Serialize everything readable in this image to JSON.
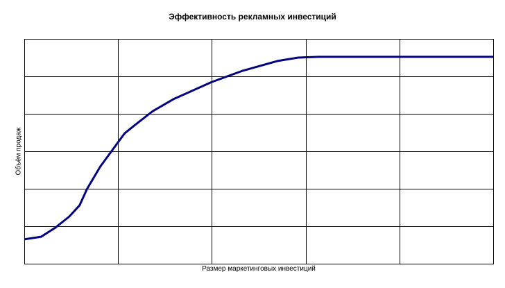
{
  "chart_data": {
    "type": "line",
    "title": "Эффективность рекламных инвестиций",
    "xlabel": "Размер маркетинговых инвестиций",
    "ylabel": "Объём продаж",
    "xlim": [
      0,
      5
    ],
    "ylim": [
      0,
      6
    ],
    "grid": true,
    "tick_labels": false,
    "line_color": "#000080",
    "series": [
      {
        "x": [
          0,
          0.18,
          0.33,
          0.48,
          0.59,
          0.67,
          0.81,
          1.0,
          1.07,
          1.22,
          1.37,
          1.59,
          2.0,
          2.33,
          2.7,
          2.92,
          3.14,
          5
        ],
        "y": [
          0.65,
          0.72,
          0.96,
          1.26,
          1.56,
          2.0,
          2.59,
          3.24,
          3.48,
          3.78,
          4.07,
          4.39,
          4.85,
          5.15,
          5.41,
          5.5,
          5.52,
          5.52
        ]
      }
    ]
  }
}
